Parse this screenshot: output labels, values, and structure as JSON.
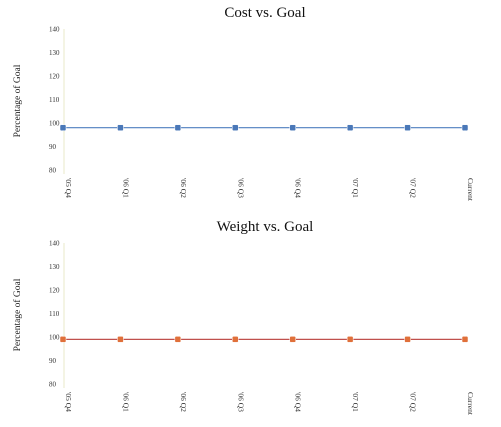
{
  "chart_data": [
    {
      "type": "line",
      "title": "Cost vs. Goal",
      "ylabel": "Percentage of Goal",
      "xlabel": "",
      "ylim": [
        80,
        140
      ],
      "yticks": [
        "80",
        "90",
        "100",
        "110",
        "120",
        "130",
        "140"
      ],
      "categories": [
        "'05 Q4",
        "'06 Q1",
        "'06 Q2",
        "'06 Q3",
        "'06 Q4",
        "'07 Q1",
        "'07 Q2",
        "Current"
      ],
      "series": [
        {
          "values": [
            98,
            98,
            98,
            98,
            98,
            98,
            98,
            98
          ]
        }
      ],
      "color": "#4f7fbf",
      "marker_color": "#4a78b8",
      "grid": false
    },
    {
      "type": "line",
      "title": "Weight vs. Goal",
      "ylabel": "Percentage of Goal",
      "xlabel": "",
      "ylim": [
        80,
        140
      ],
      "yticks": [
        "80",
        "90",
        "100",
        "110",
        "120",
        "130",
        "140"
      ],
      "categories": [
        "'05 Q4",
        "'06 Q1",
        "'06 Q2",
        "'06 Q3",
        "'06 Q4",
        "'07 Q1",
        "'07 Q2",
        "Current"
      ],
      "series": [
        {
          "values": [
            99,
            99,
            99,
            99,
            99,
            99,
            99,
            99
          ]
        }
      ],
      "color": "#c0504d",
      "marker_color": "#e0703a",
      "grid": false
    }
  ]
}
